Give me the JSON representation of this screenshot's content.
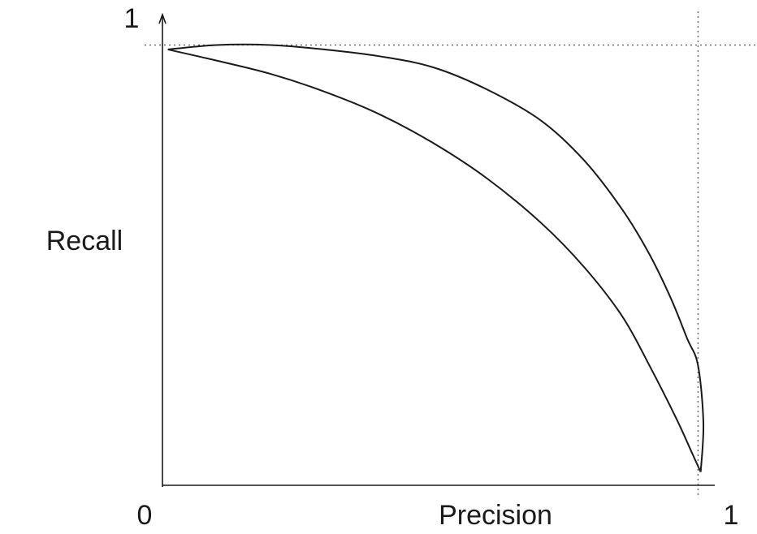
{
  "chart_data": {
    "type": "line",
    "title": "",
    "xlabel": "Precision",
    "ylabel": "Recall",
    "xlim": [
      0,
      1
    ],
    "ylim": [
      0,
      1
    ],
    "x_tick_labels": {
      "min": "0",
      "max": "1"
    },
    "y_tick_labels": {
      "max": "1"
    },
    "grid": false,
    "reference_lines": {
      "x": 0.99,
      "y": 0.99
    },
    "series": [
      {
        "color": "#1a1a1a",
        "points": [
          [
            0.01,
            0.98
          ],
          [
            0.1,
            0.99
          ],
          [
            0.2,
            0.99
          ],
          [
            0.3,
            0.98
          ],
          [
            0.4,
            0.965
          ],
          [
            0.5,
            0.94
          ],
          [
            0.6,
            0.89
          ],
          [
            0.7,
            0.82
          ],
          [
            0.78,
            0.73
          ],
          [
            0.85,
            0.62
          ],
          [
            0.9,
            0.52
          ],
          [
            0.94,
            0.42
          ],
          [
            0.97,
            0.33
          ],
          [
            0.99,
            0.27
          ],
          [
            1.0,
            0.14
          ],
          [
            0.995,
            0.03
          ]
        ]
      },
      {
        "color": "#1a1a1a",
        "points": [
          [
            0.01,
            0.98
          ],
          [
            0.1,
            0.955
          ],
          [
            0.2,
            0.925
          ],
          [
            0.3,
            0.885
          ],
          [
            0.4,
            0.835
          ],
          [
            0.5,
            0.77
          ],
          [
            0.6,
            0.69
          ],
          [
            0.7,
            0.59
          ],
          [
            0.78,
            0.49
          ],
          [
            0.85,
            0.38
          ],
          [
            0.9,
            0.27
          ],
          [
            0.95,
            0.15
          ],
          [
            0.98,
            0.07
          ],
          [
            0.995,
            0.03
          ]
        ]
      }
    ]
  }
}
